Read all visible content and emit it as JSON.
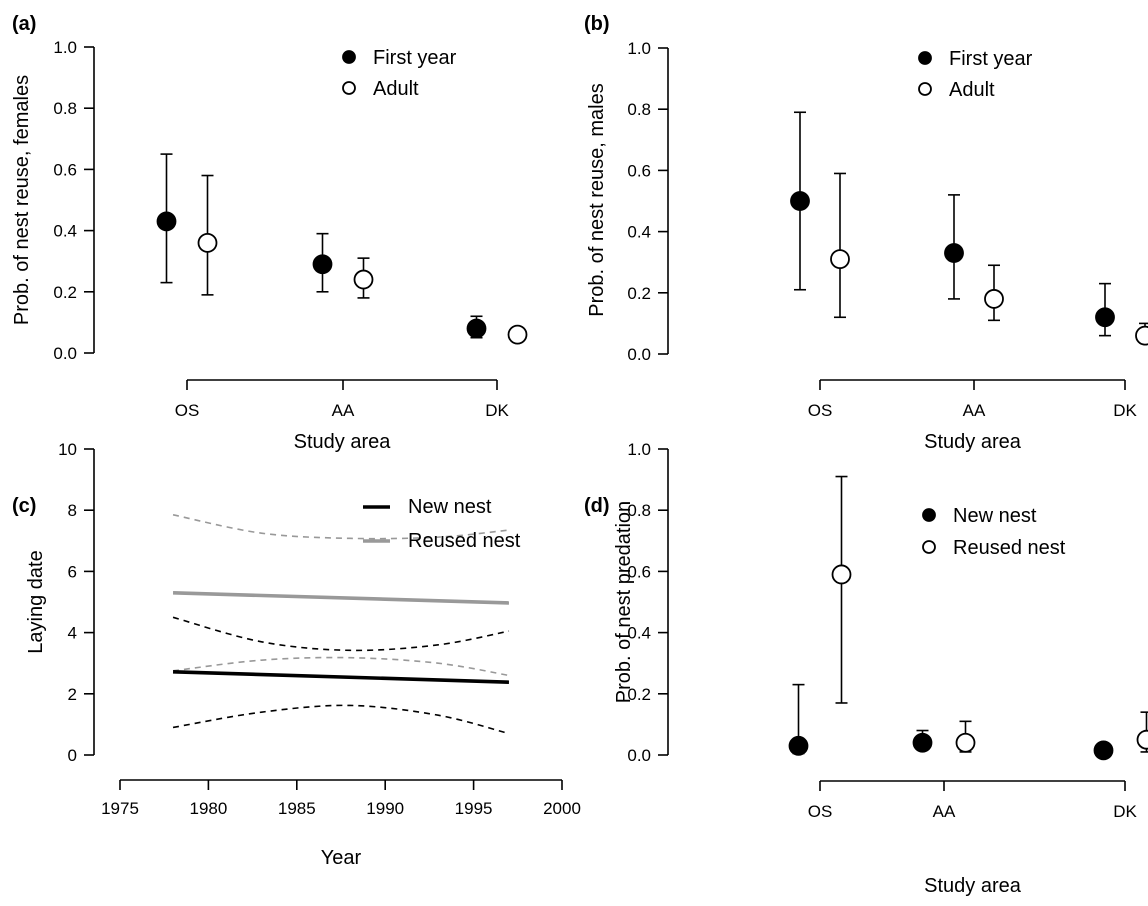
{
  "chart_data": [
    {
      "panel": "(a)",
      "type": "scatter",
      "xlabel": "Study area",
      "ylabel": "Prob. of nest reuse, females",
      "categories": [
        "OS",
        "AA",
        "DK"
      ],
      "ylim": [
        0,
        1
      ],
      "yticks": [
        "0.0",
        "0.2",
        "0.4",
        "0.6",
        "0.8",
        "1.0"
      ],
      "legend_position": "top-right",
      "series": [
        {
          "name": "First year",
          "marker": "filled",
          "values": [
            0.43,
            0.29,
            0.08
          ],
          "lower": [
            0.23,
            0.2,
            0.05
          ],
          "upper": [
            0.65,
            0.39,
            0.12
          ]
        },
        {
          "name": "Adult",
          "marker": "open",
          "values": [
            0.36,
            0.24,
            0.06
          ],
          "lower": [
            0.19,
            0.18,
            0.05
          ],
          "upper": [
            0.58,
            0.31,
            0.07
          ]
        }
      ]
    },
    {
      "panel": "(b)",
      "type": "scatter",
      "xlabel": "Study area",
      "ylabel": "Prob. of nest reuse, males",
      "categories": [
        "OS",
        "AA",
        "DK"
      ],
      "ylim": [
        0,
        1
      ],
      "yticks": [
        "0.0",
        "0.2",
        "0.4",
        "0.6",
        "0.8",
        "1.0"
      ],
      "legend_position": "top-right",
      "series": [
        {
          "name": "First year",
          "marker": "filled",
          "values": [
            0.5,
            0.33,
            0.12
          ],
          "lower": [
            0.21,
            0.18,
            0.06
          ],
          "upper": [
            0.79,
            0.52,
            0.23
          ]
        },
        {
          "name": "Adult",
          "marker": "open",
          "values": [
            0.31,
            0.18,
            0.06
          ],
          "lower": [
            0.12,
            0.11,
            0.04
          ],
          "upper": [
            0.59,
            0.29,
            0.1
          ]
        }
      ]
    },
    {
      "panel": "(c)",
      "type": "line",
      "xlabel": "Year",
      "ylabel": "Laying date",
      "xlim": [
        1975,
        2000
      ],
      "ylim": [
        0,
        10
      ],
      "xticks": [
        "1975",
        "1980",
        "1985",
        "1990",
        "1995",
        "2000"
      ],
      "yticks": [
        "0",
        "2",
        "4",
        "6",
        "8",
        "10"
      ],
      "legend_position": "top-right",
      "series": [
        {
          "name": "New nest",
          "color": "#000000",
          "x": [
            1978,
            1997
          ],
          "y": [
            2.72,
            2.38
          ],
          "ci_x": [
            1978,
            1983,
            1988,
            1993,
            1997
          ],
          "ci_lower": [
            0.9,
            1.4,
            1.62,
            1.3,
            0.7
          ],
          "ci_upper": [
            4.5,
            3.7,
            3.42,
            3.6,
            4.05
          ]
        },
        {
          "name": "Reused nest",
          "color": "#999999",
          "x": [
            1978,
            1997
          ],
          "y": [
            5.3,
            4.97
          ],
          "ci_x": [
            1978,
            1983,
            1988,
            1993,
            1997
          ],
          "ci_lower": [
            2.75,
            3.1,
            3.18,
            3.0,
            2.6
          ],
          "ci_upper": [
            7.85,
            7.25,
            7.08,
            7.12,
            7.35
          ]
        }
      ]
    },
    {
      "panel": "(d)",
      "type": "scatter",
      "xlabel": "Study area",
      "ylabel": "Prob. of nest predation",
      "categories": [
        "OS",
        "AA",
        "DK"
      ],
      "ylim": [
        0,
        1
      ],
      "yticks": [
        "0.0",
        "0.2",
        "0.4",
        "0.6",
        "0.8",
        "1.0"
      ],
      "legend_position": "top-right",
      "series": [
        {
          "name": "New nest",
          "marker": "filled",
          "values": [
            0.03,
            0.04,
            0.015
          ],
          "lower": [
            0.005,
            0.02,
            0.01
          ],
          "upper": [
            0.23,
            0.08,
            0.02
          ]
        },
        {
          "name": "Reused nest",
          "marker": "open",
          "values": [
            0.59,
            0.04,
            0.05
          ],
          "lower": [
            0.17,
            0.01,
            0.01
          ],
          "upper": [
            0.91,
            0.11,
            0.14
          ]
        }
      ]
    }
  ]
}
